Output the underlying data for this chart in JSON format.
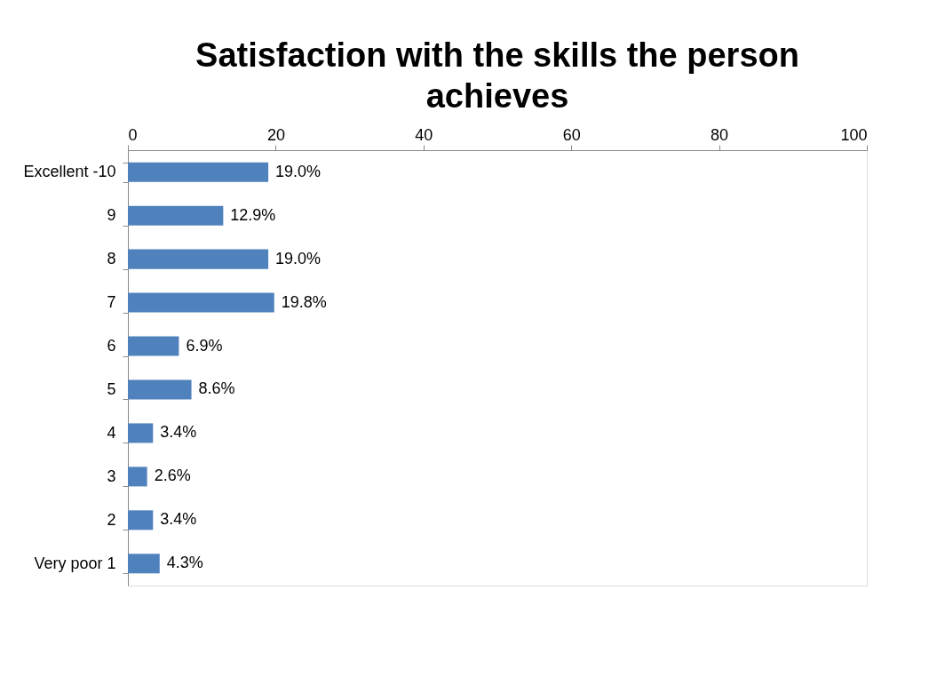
{
  "chart_data": {
    "type": "bar",
    "orientation": "horizontal",
    "title": "Satisfaction with the skills the person achieves",
    "categories": [
      "Excellent -10",
      "9",
      "8",
      "7",
      "6",
      "5",
      "4",
      "3",
      "2",
      "Very poor 1"
    ],
    "values": [
      19.0,
      12.9,
      19.0,
      19.8,
      6.9,
      8.6,
      3.4,
      2.6,
      3.4,
      4.3
    ],
    "value_labels": [
      "19.0%",
      "12.9%",
      "19.0%",
      "19.8%",
      "6.9%",
      "8.6%",
      "3.4%",
      "2.6%",
      "3.4%",
      "4.3%"
    ],
    "color": "#4f81bd",
    "xlim": [
      0,
      100
    ],
    "xticks": [
      0,
      20,
      40,
      60,
      80,
      100
    ],
    "grid": false
  }
}
